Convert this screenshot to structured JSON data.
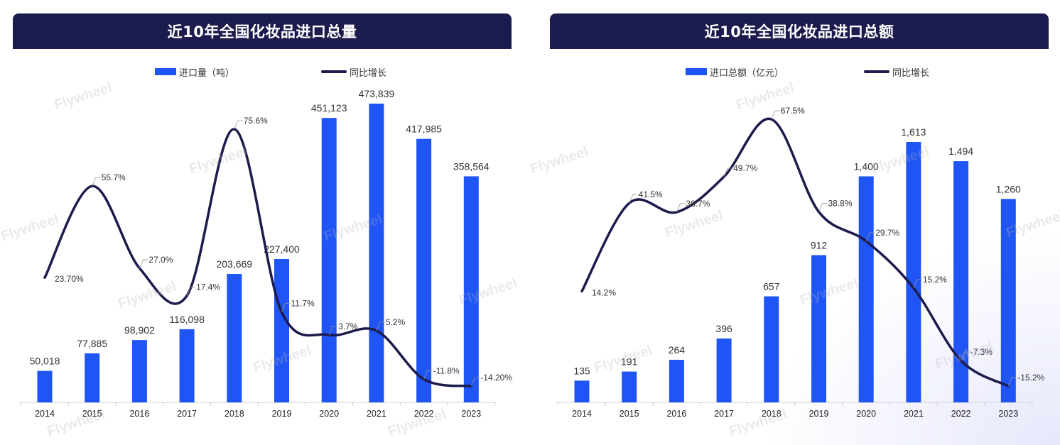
{
  "colors": {
    "header_bg": "#1b1b4d",
    "bar": "#1f55f5",
    "line": "#1b1b4d",
    "text": "#333333"
  },
  "watermark": "Flywheel",
  "chart_data": [
    {
      "type": "bar",
      "title": "近10年全国化妆品进口总量",
      "categories": [
        "2014",
        "2015",
        "2016",
        "2017",
        "2018",
        "2019",
        "2020",
        "2021",
        "2022",
        "2023"
      ],
      "series": [
        {
          "name": "进口量（吨）",
          "type": "bar",
          "values": [
            50018,
            77885,
            98902,
            116098,
            203669,
            227400,
            451123,
            473839,
            417985,
            358564
          ],
          "labels": [
            "50,018",
            "77,885",
            "98,902",
            "116,098",
            "203,669",
            "227,400",
            "451,123",
            "473,839",
            "417,985",
            "358,564"
          ]
        },
        {
          "name": "同比增长",
          "type": "line",
          "values": [
            23.7,
            55.7,
            27.0,
            17.4,
            75.6,
            11.7,
            3.7,
            5.2,
            -11.8,
            -14.2
          ],
          "labels": [
            "23.70%",
            "55.7%",
            "27.0%",
            "17.4%",
            "75.6%",
            "11.7%",
            "3.7%",
            "5.2%",
            "-11.8%",
            "-14.20%"
          ]
        }
      ],
      "legend_position": "top-center"
    },
    {
      "type": "bar",
      "title": "近10年全国化妆品进口总额",
      "categories": [
        "2014",
        "2015",
        "2016",
        "2017",
        "2018",
        "2019",
        "2020",
        "2021",
        "2022",
        "2023"
      ],
      "series": [
        {
          "name": "进口总额（亿元）",
          "type": "bar",
          "values": [
            135,
            191,
            264,
            396,
            657,
            912,
            1400,
            1613,
            1494,
            1260
          ],
          "labels": [
            "135",
            "191",
            "264",
            "396",
            "657",
            "912",
            "1,400",
            "1,613",
            "1,494",
            "1,260"
          ]
        },
        {
          "name": "同比增长",
          "type": "line",
          "values": [
            14.2,
            41.5,
            38.7,
            49.7,
            67.5,
            38.8,
            29.7,
            15.2,
            -7.3,
            -15.2
          ],
          "labels": [
            "14.2%",
            "41.5%",
            "38.7%",
            "49.7%",
            "67.5%",
            "38.8%",
            "29.7%",
            "15.2%",
            "-7.3%",
            "-15.2%"
          ]
        }
      ],
      "legend_position": "top-center"
    }
  ]
}
